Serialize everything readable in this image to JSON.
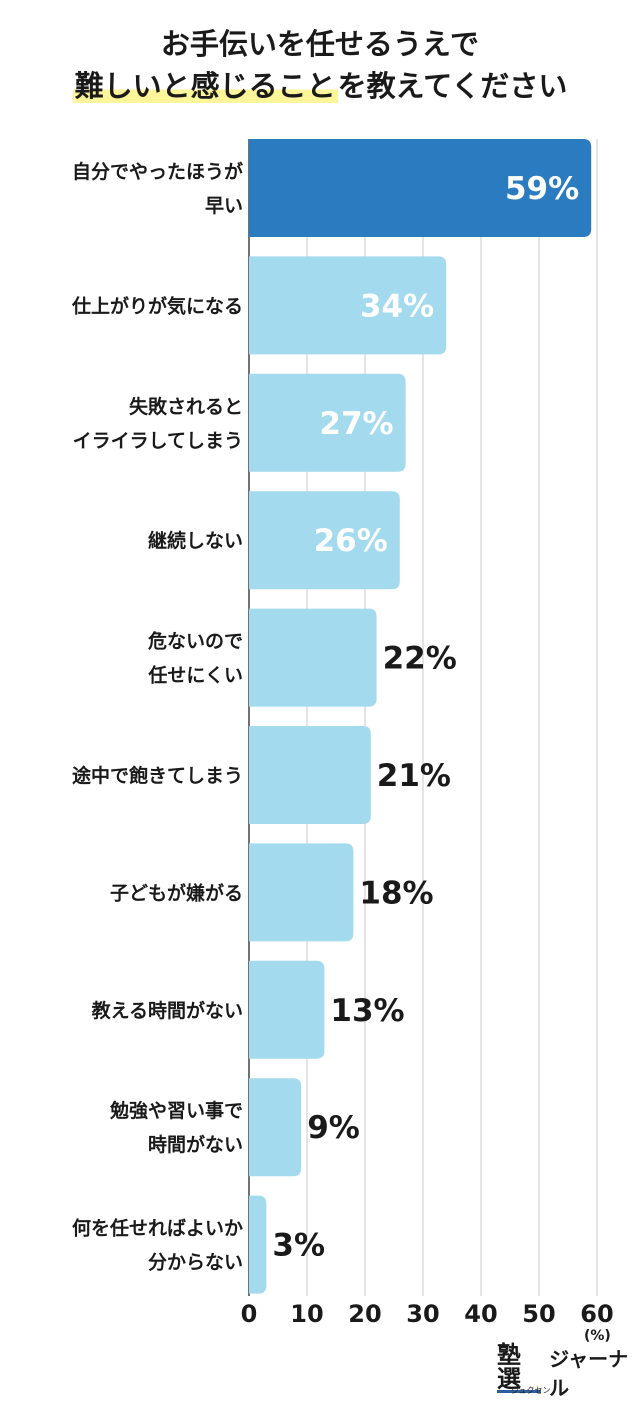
{
  "title": {
    "line1": "お手伝いを任せるうえで",
    "line2_highlight": "難しいと感じること",
    "line2_rest": "を教えてください"
  },
  "colors": {
    "highlight_bar": "#2a7bbf",
    "bar": "#a3daee",
    "grid": "#c8c8c8"
  },
  "chart_data": {
    "type": "bar",
    "orientation": "horizontal",
    "title": "お手伝いを任せるうえで難しいと感じることを教えてください",
    "categories": [
      [
        "自分でやったほうが",
        "早い"
      ],
      [
        "仕上がりが気になる"
      ],
      [
        "失敗されると",
        "イライラしてしまう"
      ],
      [
        "継続しない"
      ],
      [
        "危ないので",
        "任せにくい"
      ],
      [
        "途中で飽きてしまう"
      ],
      [
        "子どもが嫌がる"
      ],
      [
        "教える時間がない"
      ],
      [
        "勉強や習い事で",
        "時間がない"
      ],
      [
        "何を任せればよいか",
        "分からない"
      ]
    ],
    "values": [
      59,
      34,
      27,
      26,
      22,
      21,
      18,
      13,
      9,
      3
    ],
    "value_labels": [
      "59%",
      "34%",
      "27%",
      "26%",
      "22%",
      "21%",
      "18%",
      "13%",
      "9%",
      "3%"
    ],
    "xlim": [
      0,
      60
    ],
    "xticks": [
      "0",
      "10",
      "20",
      "30",
      "40",
      "50",
      "60"
    ],
    "xlabel": "(%)",
    "grid": true
  },
  "brand": {
    "mark": "塾選",
    "mark_kana": "ジュクセン",
    "name": "ジャーナル"
  }
}
